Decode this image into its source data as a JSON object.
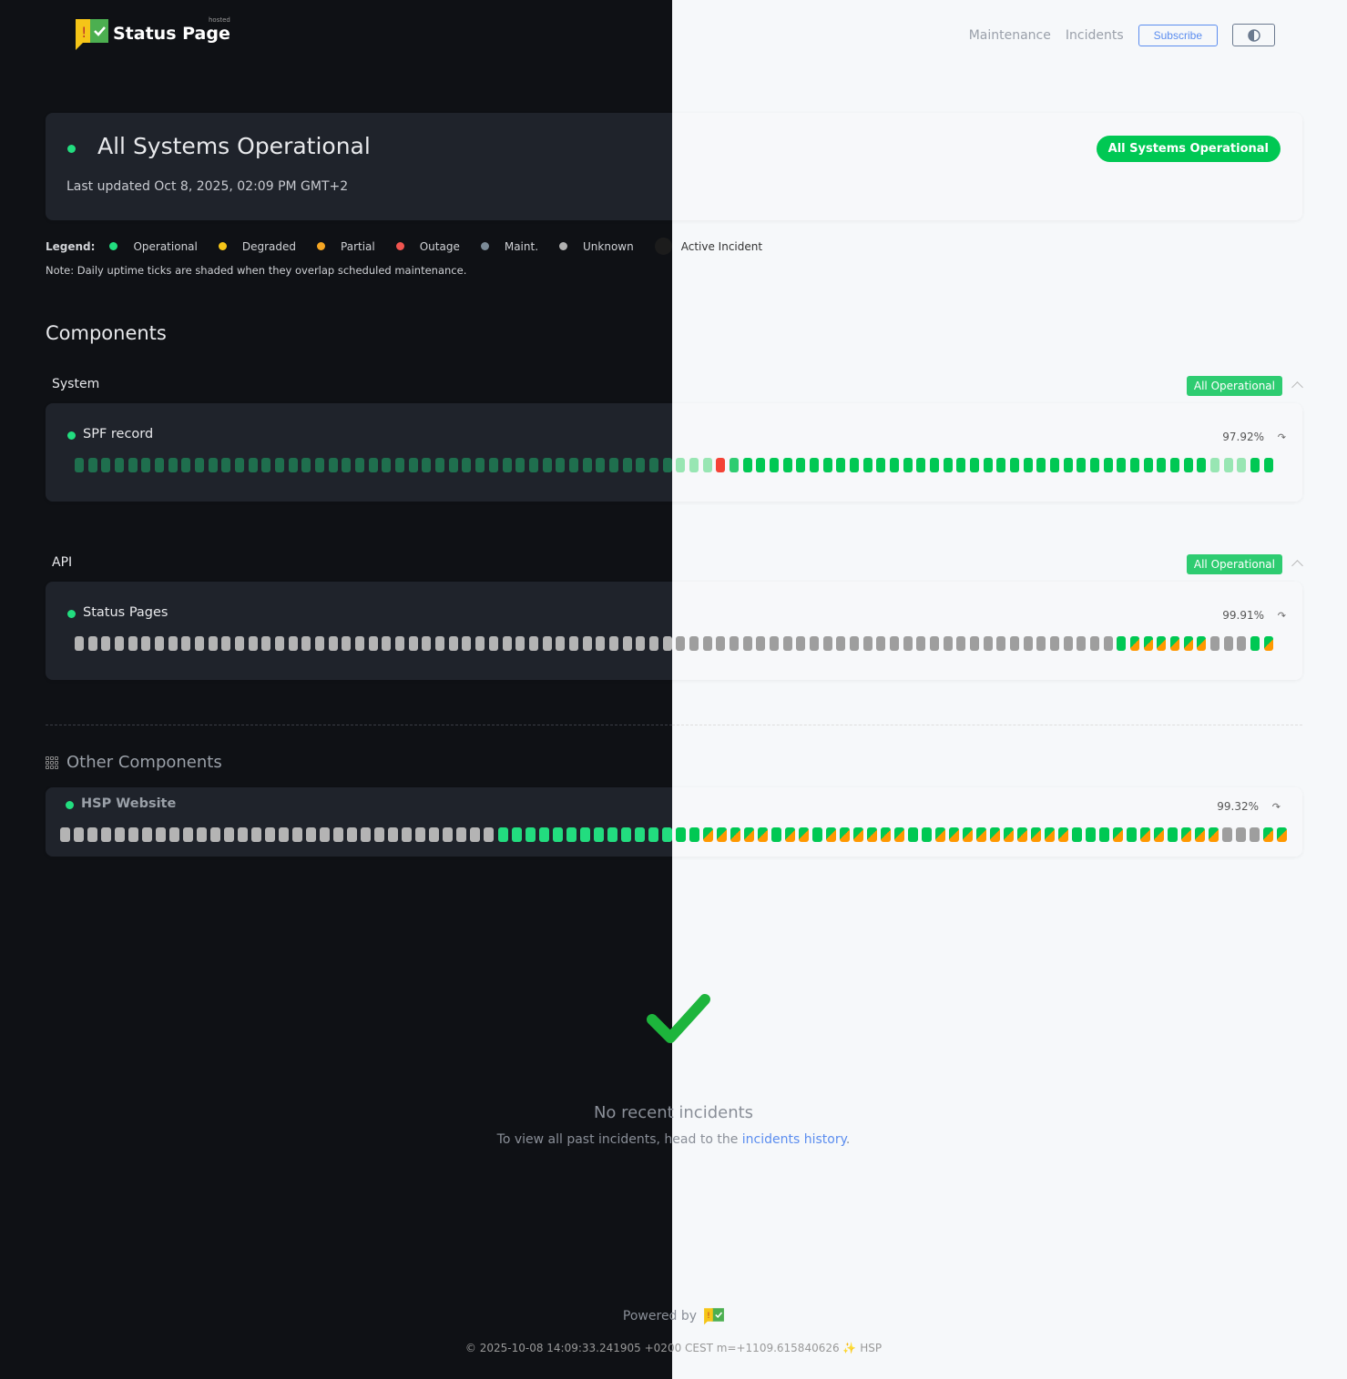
{
  "header": {
    "logo_text": "Status Page",
    "logo_superscript": "hosted",
    "nav": [
      "Maintenance",
      "Incidents"
    ],
    "subscribe_label": "Subscribe",
    "theme_toggle_icon": "half-circle-contrast-icon"
  },
  "hero": {
    "title": "All Systems Operational",
    "last_updated": "Last updated Oct 8, 2025, 02:09 PM GMT+2",
    "badge": "All Systems Operational",
    "status_color": "#00c853"
  },
  "legend": {
    "label": "Legend:",
    "items": [
      {
        "label": "Operational",
        "color": "#22dd7f"
      },
      {
        "label": "Degraded",
        "color": "#f5c518"
      },
      {
        "label": "Partial",
        "color": "#f5a623"
      },
      {
        "label": "Outage",
        "color": "#f0544f"
      },
      {
        "label": "Maint.",
        "color": "#7b8a97"
      },
      {
        "label": "Unknown",
        "color": "#b0b0b0"
      },
      {
        "label": "Active Incident",
        "color": "#1c1c1c"
      }
    ],
    "note": "Note: Daily uptime ticks are shaded when they overlap scheduled maintenance."
  },
  "components": {
    "title": "Components",
    "groups": [
      {
        "name": "System",
        "badge": "All Operational",
        "items": [
          {
            "name": "SPF record",
            "uptime": "97.92%",
            "ticks": [
              [
                "operational-light",
                48
              ],
              [
                "outage",
                1
              ],
              [
                "operational-mid",
                1
              ],
              [
                "operational",
                35
              ],
              [
                "operational-light",
                3
              ],
              [
                "operational",
                2
              ]
            ]
          }
        ]
      },
      {
        "name": "API",
        "badge": "All Operational",
        "items": [
          {
            "name": "Status Pages",
            "uptime": "99.91%",
            "ticks": [
              [
                "unknown",
                78
              ],
              [
                "operational",
                1
              ],
              [
                "maintenance",
                6
              ],
              [
                "unknown",
                3
              ],
              [
                "operational",
                1
              ],
              [
                "maintenance",
                1
              ]
            ]
          }
        ]
      }
    ]
  },
  "other": {
    "title": "Other Components",
    "items": [
      {
        "name": "HSP Website",
        "uptime": "99.32%",
        "ticks": [
          [
            "unknown",
            32
          ],
          [
            "operational",
            15
          ],
          [
            "maintenance",
            5
          ],
          [
            "operational",
            1
          ],
          [
            "maintenance",
            2
          ],
          [
            "operational",
            1
          ],
          [
            "maintenance",
            6
          ],
          [
            "operational",
            2
          ],
          [
            "maintenance",
            10
          ],
          [
            "operational",
            3
          ],
          [
            "maintenance",
            1
          ],
          [
            "operational",
            1
          ],
          [
            "maintenance",
            2
          ],
          [
            "operational",
            1
          ],
          [
            "maintenance",
            3
          ],
          [
            "unknown",
            3
          ],
          [
            "maintenance",
            2
          ]
        ]
      }
    ]
  },
  "incidents": {
    "title": "No recent incidents",
    "sub_prefix": "To view all past incidents, head to the ",
    "link": "incidents history",
    "sub_suffix": "."
  },
  "footer": {
    "powered_by": "Powered by",
    "copyright": "© 2025-10-08 14:09:33.241905 +0200 CEST m=+1109.615840626 ✨ HSP"
  }
}
